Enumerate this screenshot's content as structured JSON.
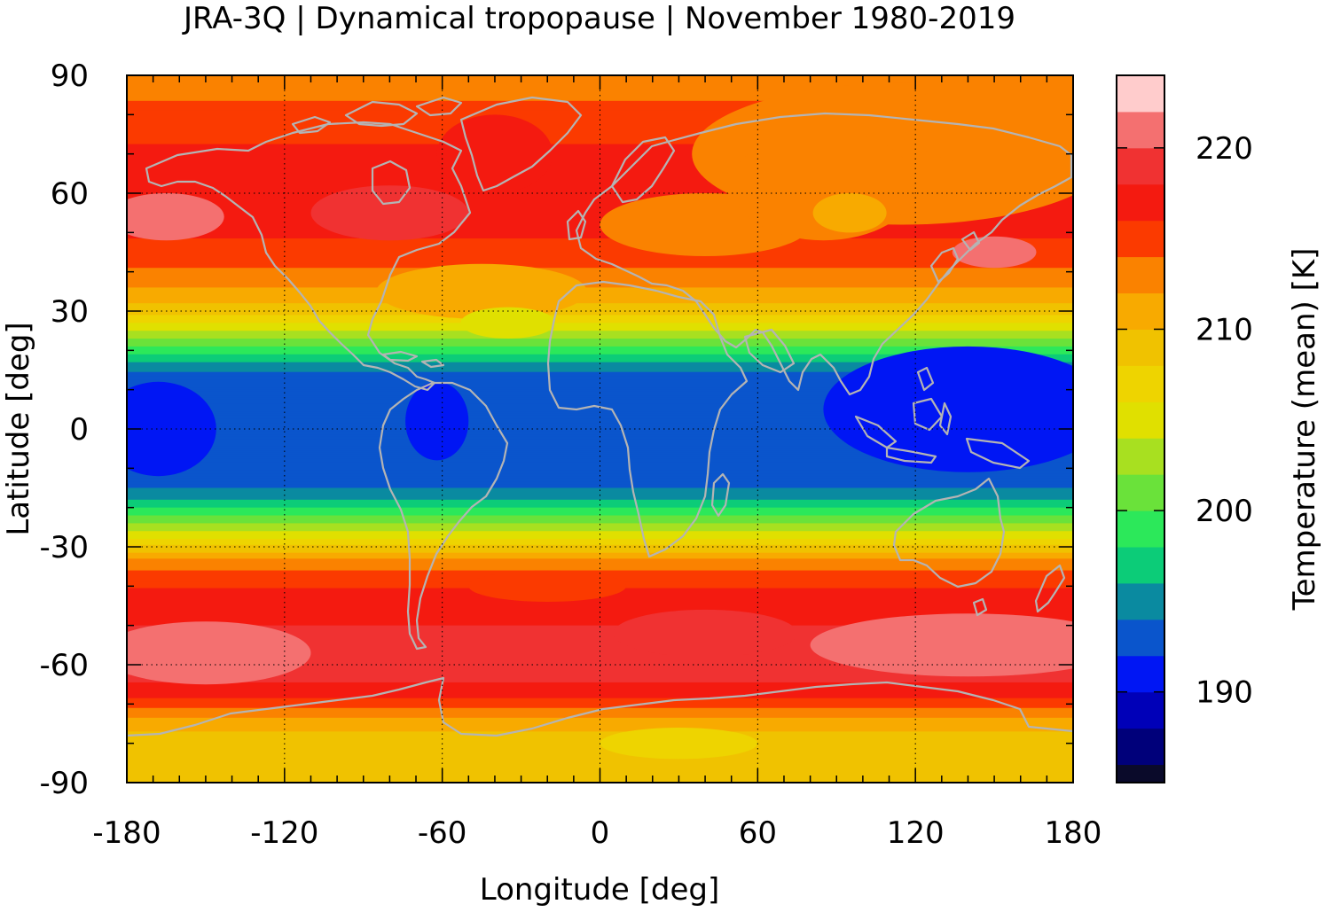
{
  "title": "JRA-3Q | Dynamical tropopause | November 1980-2019",
  "x_axis": {
    "label": "Longitude [deg]",
    "min": -180,
    "max": 180,
    "ticks": [
      "-180",
      "-120",
      "-60",
      "0",
      "60",
      "120",
      "180"
    ],
    "tick_values": [
      -180,
      -120,
      -60,
      0,
      60,
      120,
      180
    ]
  },
  "y_axis": {
    "label": "Latitude [deg]",
    "min": -90,
    "max": 90,
    "ticks": [
      "90",
      "60",
      "30",
      "0",
      "-30",
      "-60",
      "-90"
    ],
    "tick_values": [
      90,
      60,
      30,
      0,
      -30,
      -60,
      -90
    ]
  },
  "colorbar": {
    "label": "Temperature (mean) [K]",
    "min": 185,
    "max": 224,
    "ticks": [
      "220",
      "210",
      "200",
      "190"
    ],
    "tick_values": [
      220,
      210,
      200,
      190
    ],
    "levels": [
      {
        "lo": 185,
        "hi": 186,
        "color": "#0a0a2a"
      },
      {
        "lo": 186,
        "hi": 188,
        "color": "#00007a"
      },
      {
        "lo": 188,
        "hi": 190,
        "color": "#0000b8"
      },
      {
        "lo": 190,
        "hi": 192,
        "color": "#0016f4"
      },
      {
        "lo": 192,
        "hi": 194,
        "color": "#0a55cc"
      },
      {
        "lo": 194,
        "hi": 196,
        "color": "#0a8aa0"
      },
      {
        "lo": 196,
        "hi": 198,
        "color": "#0ccc78"
      },
      {
        "lo": 198,
        "hi": 200,
        "color": "#2ce85a"
      },
      {
        "lo": 200,
        "hi": 202,
        "color": "#6ae23a"
      },
      {
        "lo": 202,
        "hi": 204,
        "color": "#a8e020"
      },
      {
        "lo": 204,
        "hi": 206,
        "color": "#e0e000"
      },
      {
        "lo": 206,
        "hi": 208,
        "color": "#eed400"
      },
      {
        "lo": 208,
        "hi": 210,
        "color": "#f0c200"
      },
      {
        "lo": 210,
        "hi": 212,
        "color": "#f8aa00"
      },
      {
        "lo": 212,
        "hi": 214,
        "color": "#fa8200"
      },
      {
        "lo": 214,
        "hi": 216,
        "color": "#fb3a00"
      },
      {
        "lo": 216,
        "hi": 218,
        "color": "#f41a10"
      },
      {
        "lo": 218,
        "hi": 220,
        "color": "#f03232"
      },
      {
        "lo": 220,
        "hi": 222,
        "color": "#f47070"
      },
      {
        "lo": 222,
        "hi": 224,
        "color": "#ffcccc"
      }
    ]
  },
  "coastline_color": "#b4b4b4",
  "grid": "dotted"
}
